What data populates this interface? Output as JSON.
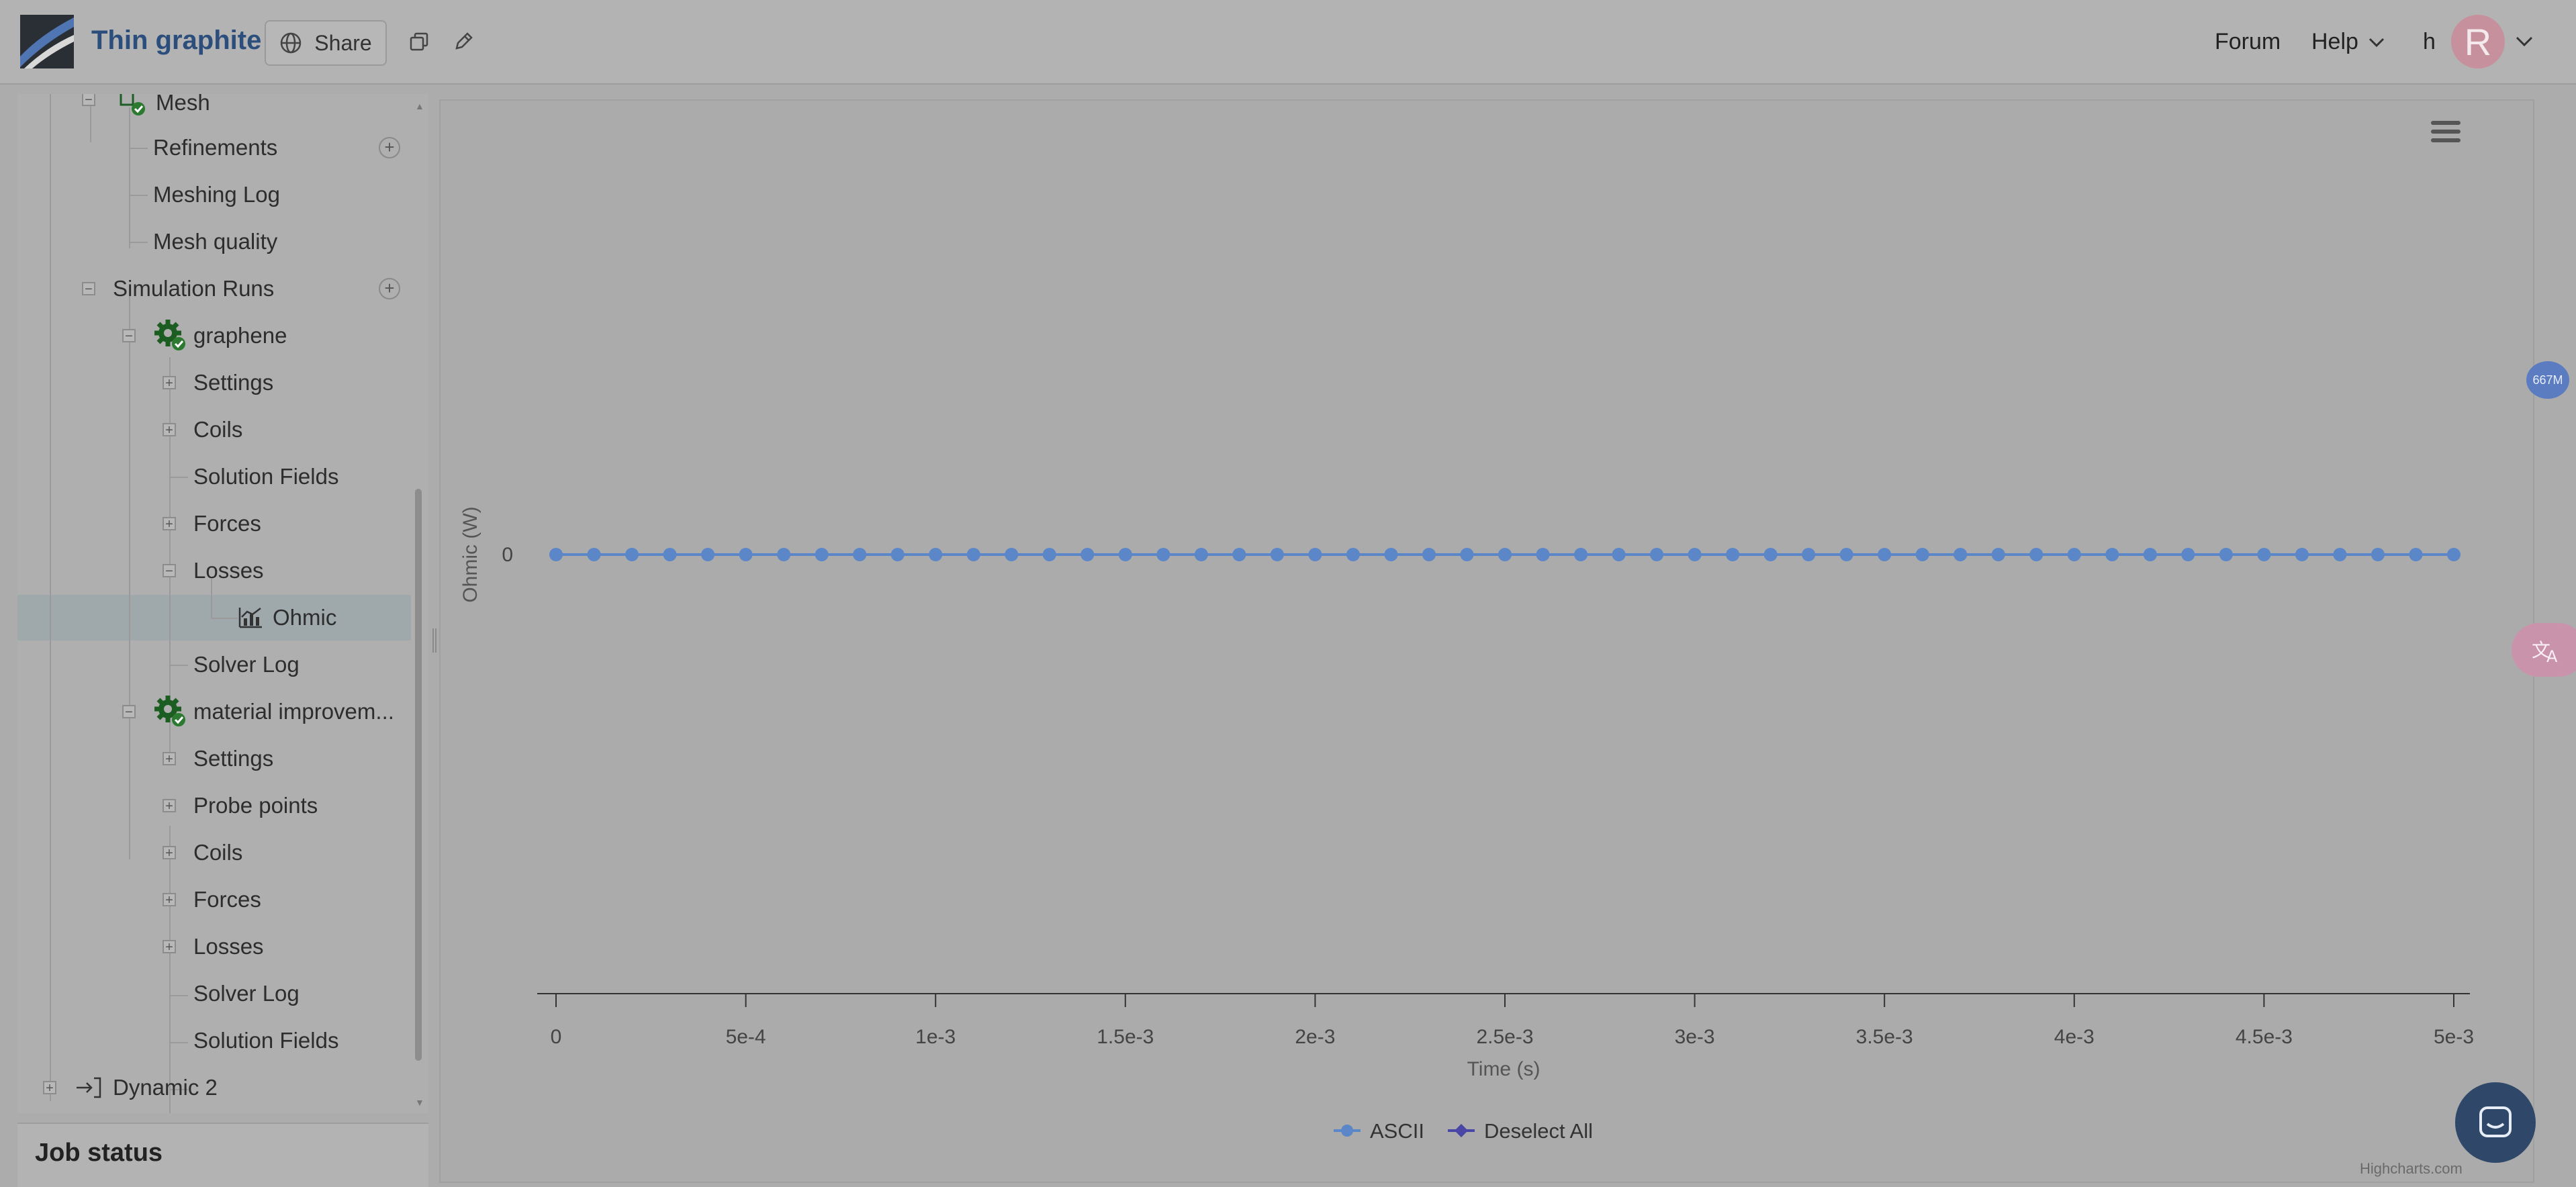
{
  "header": {
    "title": "Thin graphite",
    "share_label": "Share",
    "nav": {
      "forum": "Forum",
      "help": "Help",
      "user_initial": "h",
      "avatar_letter": "R"
    },
    "icons": [
      "logo",
      "globe-icon",
      "copy-icon",
      "pencil-icon",
      "chevron-down-icon"
    ]
  },
  "sidebar": {
    "tree": [
      {
        "label": "Mesh",
        "level": 1,
        "toggle": "−"
      },
      {
        "label": "Refinements",
        "level": 2,
        "add": true
      },
      {
        "label": "Meshing Log",
        "level": 2
      },
      {
        "label": "Mesh quality",
        "level": 2
      },
      {
        "label": "Simulation Runs",
        "level": 1,
        "toggle": "−",
        "add": true
      },
      {
        "label": "graphene",
        "level": 2,
        "toggle": "−",
        "icon": "gear-check-icon"
      },
      {
        "label": "Settings",
        "level": 3,
        "toggle": "+"
      },
      {
        "label": "Coils",
        "level": 3,
        "toggle": "+"
      },
      {
        "label": "Solution Fields",
        "level": 3
      },
      {
        "label": "Forces",
        "level": 3,
        "toggle": "+"
      },
      {
        "label": "Losses",
        "level": 3,
        "toggle": "−"
      },
      {
        "label": "Ohmic",
        "level": 4,
        "icon": "chart-icon",
        "selected": true
      },
      {
        "label": "Solver Log",
        "level": 3
      },
      {
        "label": "material improvem...",
        "level": 2,
        "toggle": "−",
        "icon": "gear-check-icon"
      },
      {
        "label": "Settings",
        "level": 3,
        "toggle": "+"
      },
      {
        "label": "Probe points",
        "level": 3,
        "toggle": "+"
      },
      {
        "label": "Coils",
        "level": 3,
        "toggle": "+"
      },
      {
        "label": "Forces",
        "level": 3,
        "toggle": "+"
      },
      {
        "label": "Losses",
        "level": 3,
        "toggle": "+"
      },
      {
        "label": "Solver Log",
        "level": 3
      },
      {
        "label": "Solution Fields",
        "level": 3
      },
      {
        "label": "Dynamic 2",
        "level": 0,
        "toggle": "+",
        "icon": "import-icon"
      }
    ]
  },
  "job_status": {
    "title": "Job status"
  },
  "floating": {
    "memory_badge": "667M",
    "translate_icon": "translate-icon",
    "chat_icon": "chat-icon"
  },
  "chart_data": {
    "type": "line",
    "title": "",
    "xlabel": "Time (s)",
    "ylabel": "Ohmic (W)",
    "xlim": [
      0,
      0.005
    ],
    "y_ticks": [
      "0"
    ],
    "x_ticks": [
      {
        "value": 0,
        "label": "0"
      },
      {
        "value": 0.0005,
        "label": "5e-4"
      },
      {
        "value": 0.001,
        "label": "1e-3"
      },
      {
        "value": 0.0015,
        "label": "1.5e-3"
      },
      {
        "value": 0.002,
        "label": "2e-3"
      },
      {
        "value": 0.0025,
        "label": "2.5e-3"
      },
      {
        "value": 0.003,
        "label": "3e-3"
      },
      {
        "value": 0.0035,
        "label": "3.5e-3"
      },
      {
        "value": 0.004,
        "label": "4e-3"
      },
      {
        "value": 0.0045,
        "label": "4.5e-3"
      },
      {
        "value": 0.005,
        "label": "5e-3"
      }
    ],
    "series": [
      {
        "name": "ASCII",
        "color": "#5b86c8",
        "x": [
          0,
          0.0001,
          0.0002,
          0.0003,
          0.0004,
          0.0005,
          0.0006,
          0.0007,
          0.0008,
          0.0009,
          0.001,
          0.0011,
          0.0012,
          0.0013,
          0.0014,
          0.0015,
          0.0016,
          0.0017,
          0.0018,
          0.0019,
          0.002,
          0.0021,
          0.0022,
          0.0023,
          0.0024,
          0.0025,
          0.0026,
          0.0027,
          0.0028,
          0.0029,
          0.003,
          0.0031,
          0.0032,
          0.0033,
          0.0034,
          0.0035,
          0.0036,
          0.0037,
          0.0038,
          0.0039,
          0.004,
          0.0041,
          0.0042,
          0.0043,
          0.0044,
          0.0045,
          0.0046,
          0.0047,
          0.0048,
          0.0049,
          0.005
        ],
        "values": [
          0,
          0,
          0,
          0,
          0,
          0,
          0,
          0,
          0,
          0,
          0,
          0,
          0,
          0,
          0,
          0,
          0,
          0,
          0,
          0,
          0,
          0,
          0,
          0,
          0,
          0,
          0,
          0,
          0,
          0,
          0,
          0,
          0,
          0,
          0,
          0,
          0,
          0,
          0,
          0,
          0,
          0,
          0,
          0,
          0,
          0,
          0,
          0,
          0,
          0,
          0
        ]
      }
    ],
    "legend": [
      {
        "label": "ASCII",
        "color": "#5b86c8"
      },
      {
        "label": "Deselect All",
        "color": "#4a46a8"
      }
    ],
    "legend_position": "bottom-center",
    "credits": "Highcharts.com"
  }
}
